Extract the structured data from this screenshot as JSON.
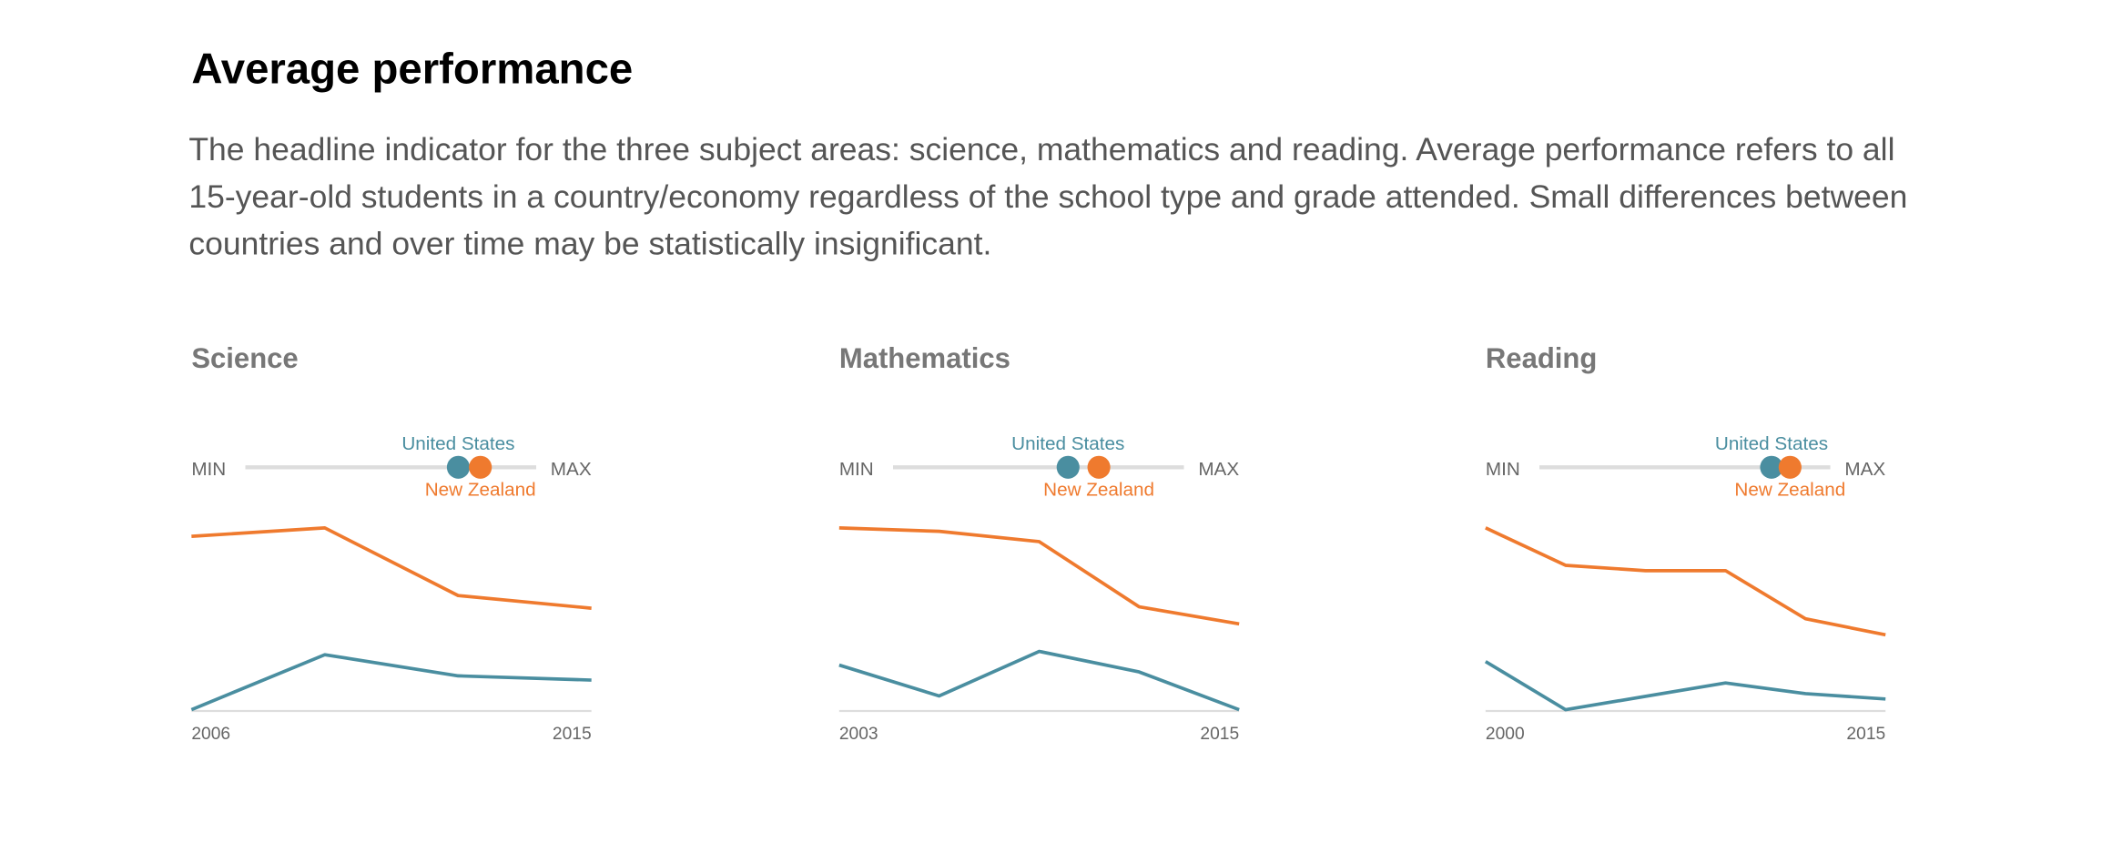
{
  "header": {
    "title": "Average performance",
    "description": "The headline indicator for the three subject areas: science, mathematics and reading. Average performance refers to all 15-year-old students in a country/economy regardless of the school type and grade attended. Small differences between countries and over time may be statistically insignificant."
  },
  "chart_data": [
    {
      "type": "line",
      "title": "Science",
      "slider_labels": [
        "MIN",
        "MAX"
      ],
      "slider_lim": [
        332,
        556
      ],
      "x": [
        2006,
        2009,
        2012,
        2015
      ],
      "xlim": [
        2006,
        2015
      ],
      "xticks": [
        2006,
        2015
      ],
      "ylim": [
        489,
        532
      ],
      "series": [
        {
          "name": "United States",
          "color": "#4a8ea0",
          "values": [
            489,
            502,
            497,
            496
          ]
        },
        {
          "name": "New Zealand",
          "color": "#ef7a2e",
          "values": [
            530,
            532,
            516,
            513
          ]
        }
      ]
    },
    {
      "type": "line",
      "title": "Mathematics",
      "slider_labels": [
        "MIN",
        "MAX"
      ],
      "slider_lim": [
        328,
        564
      ],
      "x": [
        2003,
        2006,
        2009,
        2012,
        2015
      ],
      "xlim": [
        2003,
        2015
      ],
      "xticks": [
        2003,
        2015
      ],
      "ylim": [
        470,
        523
      ],
      "series": [
        {
          "name": "United States",
          "color": "#4a8ea0",
          "values": [
            483,
            474,
            487,
            481,
            470
          ]
        },
        {
          "name": "New Zealand",
          "color": "#ef7a2e",
          "values": [
            523,
            522,
            519,
            500,
            495
          ]
        }
      ]
    },
    {
      "type": "line",
      "title": "Reading",
      "slider_labels": [
        "MIN",
        "MAX"
      ],
      "slider_lim": [
        347,
        535
      ],
      "x": [
        2000,
        2003,
        2006,
        2009,
        2012,
        2015
      ],
      "xlim": [
        2000,
        2015
      ],
      "xticks": [
        2000,
        2015
      ],
      "ylim": [
        495,
        529
      ],
      "series": [
        {
          "name": "United States",
          "color": "#4a8ea0",
          "x": [
            2000,
            2003,
            2009,
            2012,
            2015
          ],
          "values": [
            504,
            495,
            500,
            498,
            497
          ]
        },
        {
          "name": "New Zealand",
          "color": "#ef7a2e",
          "values": [
            529,
            522,
            521,
            521,
            512,
            509
          ]
        }
      ]
    }
  ]
}
